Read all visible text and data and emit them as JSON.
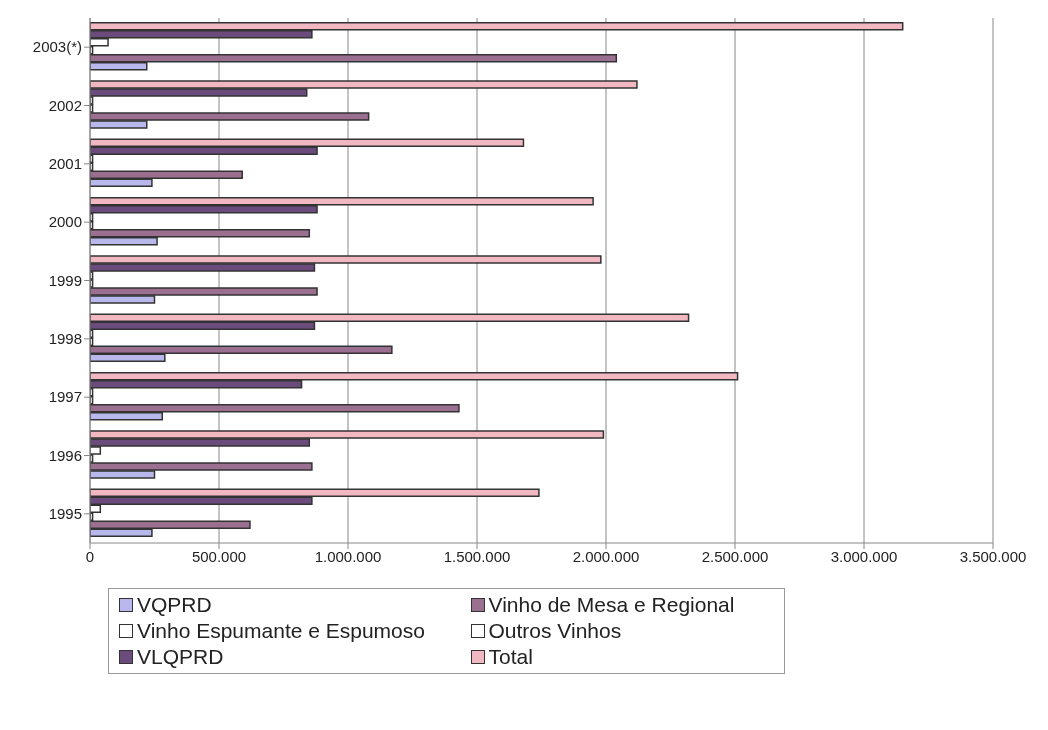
{
  "chart_data": {
    "type": "bar",
    "orientation": "horizontal",
    "categories": [
      "2003(*)",
      "2002",
      "2001",
      "2000",
      "1999",
      "1998",
      "1997",
      "1996",
      "1995"
    ],
    "series": [
      {
        "name": "Total",
        "color": "#f2b8c2",
        "values": [
          3150000,
          2120000,
          1680000,
          1950000,
          1980000,
          2320000,
          2510000,
          1990000,
          1740000
        ]
      },
      {
        "name": "VLQPRD",
        "color": "#6b4a7c",
        "values": [
          860000,
          840000,
          880000,
          880000,
          870000,
          870000,
          820000,
          850000,
          860000
        ]
      },
      {
        "name": "Outros Vinhos",
        "color": "#ffffff",
        "values": [
          70000,
          10000,
          10000,
          10000,
          10000,
          10000,
          10000,
          40000,
          40000
        ]
      },
      {
        "name": "Vinho Espumante e Espumoso",
        "color": "#ffffff",
        "values": [
          10000,
          10000,
          10000,
          10000,
          10000,
          10000,
          10000,
          10000,
          10000
        ]
      },
      {
        "name": "Vinho de Mesa e Regional",
        "color": "#9a6f90",
        "values": [
          2040000,
          1080000,
          590000,
          850000,
          880000,
          1170000,
          1430000,
          860000,
          620000
        ]
      },
      {
        "name": "VQPRD",
        "color": "#b8b8ec",
        "values": [
          220000,
          220000,
          240000,
          260000,
          250000,
          290000,
          280000,
          250000,
          240000
        ]
      }
    ],
    "xlim": [
      0,
      3500000
    ],
    "xticks": [
      0,
      {
        "value": 500000,
        "label": "500.000"
      },
      {
        "value": 1000000,
        "label": "1.000.000"
      },
      {
        "value": 1500000,
        "label": "1.500.000"
      },
      {
        "value": 2000000,
        "label": "2.000.000"
      },
      {
        "value": 2500000,
        "label": "2.500.000"
      },
      {
        "value": 3000000,
        "label": "3.000.000"
      },
      {
        "value": 3500000,
        "label": "3.500.000"
      }
    ],
    "grid": "x",
    "legend": "bottom"
  }
}
